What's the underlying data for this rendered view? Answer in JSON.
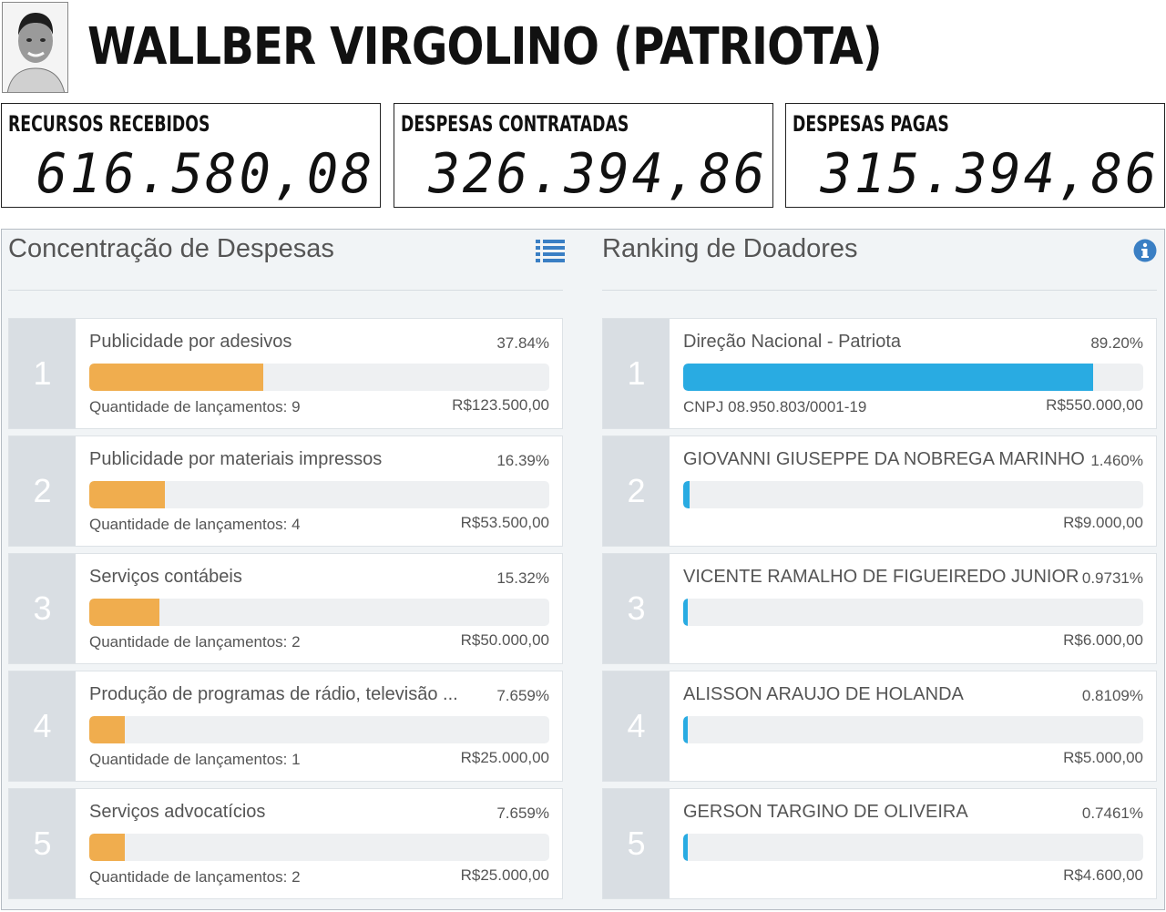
{
  "header": {
    "candidate_name": "WALLBER VIRGOLINO (PATRIOTA)"
  },
  "summary": [
    {
      "label": "RECURSOS RECEBIDOS",
      "value": "616.580,08"
    },
    {
      "label": "DESPESAS CONTRATADAS",
      "value": "326.394,86"
    },
    {
      "label": "DESPESAS PAGAS",
      "value": "315.394,86"
    }
  ],
  "expenses": {
    "title": "Concentração de Despesas",
    "icon": "list-icon",
    "accent": "#f0ad4e",
    "items": [
      {
        "rank": "1",
        "name": "Publicidade por adesivos",
        "percent": "37.84%",
        "fill": 0.3784,
        "sub": "Quantidade de lançamentos: 9",
        "amount": "R$123.500,00"
      },
      {
        "rank": "2",
        "name": "Publicidade por materiais impressos",
        "percent": "16.39%",
        "fill": 0.1639,
        "sub": "Quantidade de lançamentos: 4",
        "amount": "R$53.500,00"
      },
      {
        "rank": "3",
        "name": "Serviços contábeis",
        "percent": "15.32%",
        "fill": 0.1532,
        "sub": "Quantidade de lançamentos: 2",
        "amount": "R$50.000,00"
      },
      {
        "rank": "4",
        "name": "Produção de programas de rádio, televisão ...",
        "percent": "7.659%",
        "fill": 0.07659,
        "sub": "Quantidade de lançamentos: 1",
        "amount": "R$25.000,00"
      },
      {
        "rank": "5",
        "name": "Serviços advocatícios",
        "percent": "7.659%",
        "fill": 0.07659,
        "sub": "Quantidade de lançamentos: 2",
        "amount": "R$25.000,00"
      }
    ]
  },
  "donors": {
    "title": "Ranking de Doadores",
    "icon": "info-icon",
    "accent": "#29abe2",
    "items": [
      {
        "rank": "1",
        "name": "Direção Nacional - Patriota",
        "percent": "89.20%",
        "fill": 0.892,
        "sub": "CNPJ 08.950.803/0001-19",
        "amount": "R$550.000,00"
      },
      {
        "rank": "2",
        "name": "GIOVANNI GIUSEPPE DA NOBREGA MARINHO",
        "percent": "1.460%",
        "fill": 0.0146,
        "sub": "",
        "amount": "R$9.000,00"
      },
      {
        "rank": "3",
        "name": "VICENTE RAMALHO DE FIGUEIREDO JUNIOR",
        "percent": "0.9731%",
        "fill": 0.009731,
        "sub": "",
        "amount": "R$6.000,00"
      },
      {
        "rank": "4",
        "name": "ALISSON ARAUJO DE HOLANDA",
        "percent": "0.8109%",
        "fill": 0.008109,
        "sub": "",
        "amount": "R$5.000,00"
      },
      {
        "rank": "5",
        "name": "GERSON TARGINO DE OLIVEIRA",
        "percent": "0.7461%",
        "fill": 0.007461,
        "sub": "",
        "amount": "R$4.600,00"
      }
    ]
  }
}
